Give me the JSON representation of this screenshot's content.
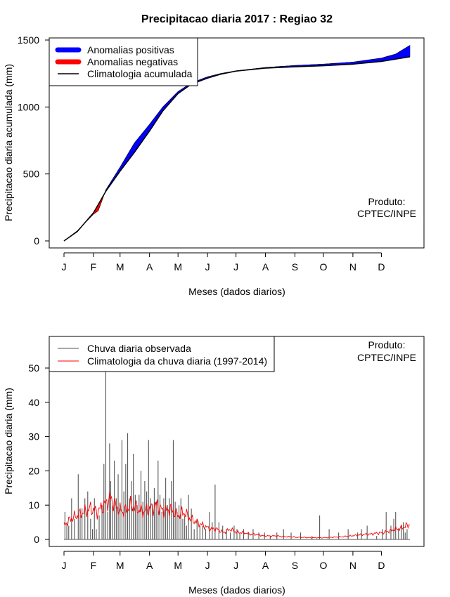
{
  "title": "Precipitacao diaria 2017 : Regiao 32",
  "colors": {
    "positive": "#0000ff",
    "negative": "#ff0000",
    "climatology_line": "#000000",
    "observed_bars": "#555555",
    "climatology_daily": "#ff0000"
  },
  "chart_data": [
    {
      "type": "area",
      "title": "Precipitacao diaria 2017 : Regiao 32",
      "xlabel": "Meses (dados diarios)",
      "ylabel": "Precipitacao diaria acumulada (mm)",
      "ylim": [
        0,
        1500
      ],
      "yticks": [
        0,
        500,
        1000,
        1500
      ],
      "month_ticks": [
        "J",
        "F",
        "M",
        "A",
        "M",
        "J",
        "J",
        "A",
        "S",
        "O",
        "N",
        "D"
      ],
      "month_days": [
        1,
        32,
        60,
        91,
        121,
        152,
        182,
        213,
        244,
        274,
        305,
        335
      ],
      "xlim": [
        1,
        365
      ],
      "legend": [
        "Anomalias positivas",
        "Anomalias negativas",
        "Climatologia acumulada"
      ],
      "legend_position": "top-left",
      "annotation": [
        "Produto:",
        "CPTEC/INPE"
      ],
      "climatology_cumulative": {
        "days": [
          1,
          15,
          32,
          45,
          60,
          75,
          91,
          105,
          121,
          135,
          152,
          166,
          182,
          213,
          244,
          274,
          305,
          335,
          365
        ],
        "values": [
          0,
          70,
          210,
          370,
          520,
          660,
          820,
          970,
          1100,
          1170,
          1215,
          1245,
          1268,
          1290,
          1300,
          1308,
          1320,
          1340,
          1375
        ]
      },
      "observed_cumulative": {
        "days": [
          1,
          15,
          32,
          37,
          45,
          60,
          75,
          91,
          105,
          121,
          135,
          152,
          166,
          182,
          213,
          244,
          274,
          305,
          335,
          350,
          365
        ],
        "values": [
          0,
          75,
          200,
          225,
          380,
          550,
          730,
          870,
          1000,
          1115,
          1180,
          1225,
          1250,
          1270,
          1295,
          1310,
          1320,
          1335,
          1365,
          1395,
          1460
        ]
      }
    },
    {
      "type": "bar",
      "xlabel": "Meses (dados diarios)",
      "ylabel": "Precipitacao diaria (mm)",
      "ylim": [
        0,
        50
      ],
      "yticks": [
        0,
        10,
        20,
        30,
        40,
        50
      ],
      "month_ticks": [
        "J",
        "F",
        "M",
        "A",
        "M",
        "J",
        "J",
        "A",
        "S",
        "O",
        "N",
        "D"
      ],
      "month_days": [
        1,
        32,
        60,
        91,
        121,
        152,
        182,
        213,
        244,
        274,
        305,
        335
      ],
      "xlim": [
        1,
        365
      ],
      "legend": [
        "Chuva diaria observada",
        "Climatologia da chuva diaria (1997-2014)"
      ],
      "legend_position": "top-left",
      "annotation": [
        "Produto:",
        "CPTEC/INPE"
      ],
      "observed_daily": {
        "days": [
          2,
          4,
          6,
          9,
          12,
          16,
          18,
          20,
          23,
          26,
          29,
          31,
          33,
          35,
          38,
          41,
          43,
          45,
          47,
          49,
          50,
          52,
          54,
          56,
          58,
          60,
          62,
          64,
          66,
          68,
          70,
          72,
          74,
          76,
          78,
          80,
          82,
          84,
          86,
          88,
          90,
          92,
          94,
          96,
          98,
          100,
          102,
          104,
          106,
          108,
          110,
          112,
          114,
          116,
          118,
          120,
          122,
          124,
          126,
          128,
          130,
          132,
          135,
          138,
          141,
          144,
          147,
          150,
          154,
          157,
          160,
          164,
          168,
          172,
          176,
          180,
          183,
          186,
          190,
          195,
          200,
          206,
          212,
          218,
          225,
          232,
          240,
          250,
          262,
          270,
          280,
          290,
          300,
          310,
          314,
          320,
          330,
          336,
          340,
          345,
          348,
          350,
          353,
          356,
          358,
          360,
          362
        ],
        "values": [
          8,
          5,
          4,
          12,
          6,
          19,
          7,
          9,
          12,
          14,
          6,
          3,
          12,
          3,
          7,
          10,
          22,
          50,
          8,
          28,
          17,
          10,
          23,
          12,
          19,
          9,
          29,
          14,
          22,
          31,
          12,
          17,
          25,
          13,
          10,
          13,
          20,
          11,
          17,
          14,
          29,
          12,
          10,
          15,
          11,
          23,
          13,
          8,
          12,
          18,
          10,
          12,
          17,
          29,
          11,
          8,
          10,
          12,
          6,
          7,
          4,
          13,
          9,
          3,
          6,
          4,
          4,
          3,
          8,
          5,
          16,
          5,
          4,
          3,
          2,
          4,
          3,
          2,
          3,
          2,
          3,
          2,
          2,
          1,
          2,
          3,
          2,
          2,
          1,
          7,
          3,
          2,
          3,
          2,
          3,
          4,
          1,
          3,
          8,
          4,
          6,
          8,
          3,
          4,
          5,
          2,
          3
        ]
      },
      "climatology_daily": {
        "days": [
          1,
          8,
          15,
          22,
          29,
          36,
          43,
          50,
          57,
          64,
          71,
          78,
          85,
          92,
          99,
          106,
          113,
          120,
          127,
          134,
          141,
          148,
          155,
          162,
          169,
          176,
          183,
          190,
          197,
          204,
          211,
          218,
          225,
          232,
          239,
          246,
          253,
          260,
          267,
          274,
          281,
          288,
          295,
          302,
          309,
          316,
          323,
          330,
          337,
          344,
          351,
          358,
          365
        ],
        "values": [
          4,
          6,
          7,
          8,
          9,
          8,
          10,
          12,
          9,
          8,
          10,
          9,
          8,
          9,
          10,
          8,
          9,
          7,
          8,
          6,
          5,
          4,
          3,
          3,
          2,
          3,
          2,
          2,
          1.5,
          1.5,
          1,
          1,
          1,
          0.8,
          0.8,
          0.6,
          0.6,
          0.5,
          0.5,
          0.5,
          0.6,
          0.7,
          0.8,
          1,
          1.2,
          1.5,
          1.5,
          1.8,
          2,
          2.5,
          3,
          3.5,
          4.5
        ]
      }
    }
  ]
}
